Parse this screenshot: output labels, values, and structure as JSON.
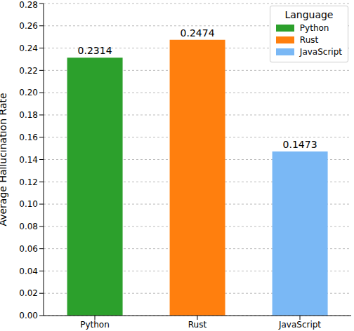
{
  "chart_data": {
    "type": "bar",
    "y_label": "Average Hallucination Rate",
    "legend_title": "Language",
    "categories": [
      "Python",
      "Rust",
      "JavaScript"
    ],
    "values": [
      0.2314,
      0.2474,
      0.1473
    ],
    "colors": [
      "#2ca02c",
      "#ff7f0e",
      "#7ab8f5"
    ],
    "ylim": [
      0,
      0.28
    ],
    "yticks": [
      {
        "value": 0,
        "label": "0.00"
      },
      {
        "value": 0.02,
        "label": "0.02"
      },
      {
        "value": 0.04,
        "label": "0.04"
      },
      {
        "value": 0.06,
        "label": "0.06"
      },
      {
        "value": 0.08,
        "label": "0.08"
      },
      {
        "value": 0.1,
        "label": "0.10"
      },
      {
        "value": 0.12,
        "label": "0.12"
      },
      {
        "value": 0.14,
        "label": "0.14"
      },
      {
        "value": 0.16,
        "label": "0.16"
      },
      {
        "value": 0.18,
        "label": "0.18"
      },
      {
        "value": 0.2,
        "label": "0.20"
      },
      {
        "value": 0.22,
        "label": "0.22"
      },
      {
        "value": 0.24,
        "label": "0.24"
      },
      {
        "value": 0.26,
        "label": "0.26"
      },
      {
        "value": 0.28,
        "label": "0.28"
      }
    ],
    "grid": true,
    "legend": "upper right",
    "data_labels": true
  }
}
